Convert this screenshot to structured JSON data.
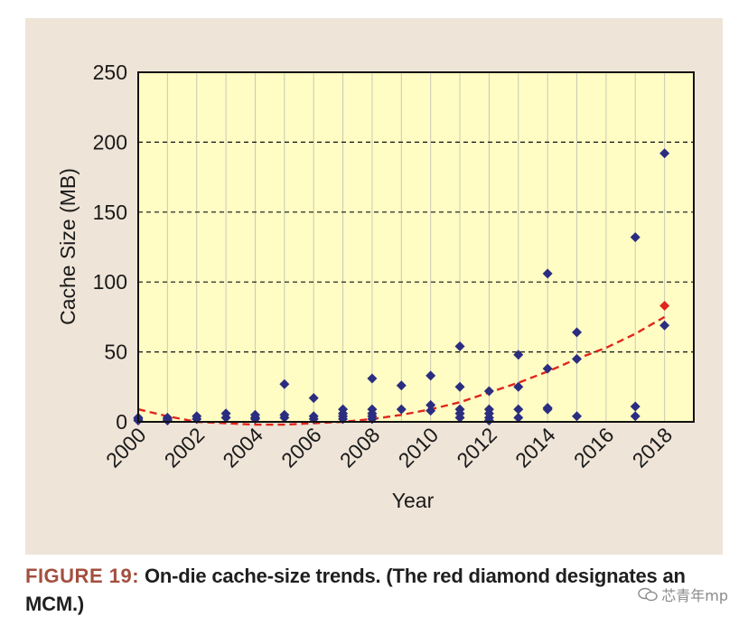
{
  "chart_data": {
    "type": "scatter",
    "xlabel": "Year",
    "ylabel": "Cache Size (MB)",
    "xlim": [
      2000,
      2019
    ],
    "ylim": [
      0,
      250
    ],
    "x_ticks": [
      "2000",
      "2002",
      "2004",
      "2006",
      "2008",
      "2010",
      "2012",
      "2014",
      "2016",
      "2018"
    ],
    "y_ticks": [
      "0",
      "50",
      "100",
      "150",
      "200",
      "250"
    ],
    "grid": "horizontal dashed and vertical solid",
    "colors": {
      "panel_background": "#efe4d8",
      "plot_background": "#fffdc4",
      "points": "#2b2d80",
      "trend": "#e0261d",
      "mcm_point": "#e0261d"
    },
    "series": [
      {
        "marker": "diamond",
        "points": [
          [
            2000,
            1
          ],
          [
            2000,
            2
          ],
          [
            2000,
            3
          ],
          [
            2001,
            1
          ],
          [
            2001,
            2
          ],
          [
            2001,
            3
          ],
          [
            2002,
            2
          ],
          [
            2002,
            4
          ],
          [
            2003,
            3
          ],
          [
            2003,
            6
          ],
          [
            2004,
            2
          ],
          [
            2004,
            3
          ],
          [
            2004,
            5
          ],
          [
            2005,
            3
          ],
          [
            2005,
            5
          ],
          [
            2005,
            27
          ],
          [
            2006,
            2
          ],
          [
            2006,
            4
          ],
          [
            2006,
            17
          ],
          [
            2007,
            2
          ],
          [
            2007,
            4
          ],
          [
            2007,
            6
          ],
          [
            2007,
            9
          ],
          [
            2008,
            2
          ],
          [
            2008,
            4
          ],
          [
            2008,
            6
          ],
          [
            2008,
            9
          ],
          [
            2008,
            31
          ],
          [
            2009,
            9
          ],
          [
            2009,
            26
          ],
          [
            2010,
            8
          ],
          [
            2010,
            12
          ],
          [
            2010,
            33
          ],
          [
            2011,
            3
          ],
          [
            2011,
            6
          ],
          [
            2011,
            9
          ],
          [
            2011,
            25
          ],
          [
            2011,
            54
          ],
          [
            2012,
            1
          ],
          [
            2012,
            3
          ],
          [
            2012,
            6
          ],
          [
            2012,
            9
          ],
          [
            2012,
            22
          ],
          [
            2013,
            3
          ],
          [
            2013,
            9
          ],
          [
            2013,
            25
          ],
          [
            2013,
            48
          ],
          [
            2014,
            9
          ],
          [
            2014,
            10
          ],
          [
            2014,
            38
          ],
          [
            2014,
            106
          ],
          [
            2015,
            4
          ],
          [
            2015,
            45
          ],
          [
            2015,
            64
          ],
          [
            2017,
            4
          ],
          [
            2017,
            11
          ],
          [
            2017,
            132
          ],
          [
            2018,
            69
          ],
          [
            2018,
            192
          ]
        ]
      },
      {
        "marker": "diamond",
        "points": [
          [
            2018,
            83
          ]
        ]
      },
      {
        "type": "trend",
        "style": "dashed",
        "x": [
          2000,
          2001,
          2002,
          2003,
          2004,
          2005,
          2006,
          2007,
          2008,
          2009,
          2010,
          2011,
          2012,
          2013,
          2014,
          2015,
          2016,
          2017,
          2018
        ],
        "y": [
          9,
          4,
          0,
          -1,
          -2,
          -2,
          -1,
          0,
          2,
          5,
          9,
          14,
          21,
          28,
          36,
          45,
          53,
          63,
          75
        ]
      }
    ]
  },
  "caption": {
    "label": "FIGURE 19:",
    "text": " On-die cache-size trends. (The red diamond designates an MCM.)"
  },
  "watermark": {
    "text": "芯青年mp"
  }
}
